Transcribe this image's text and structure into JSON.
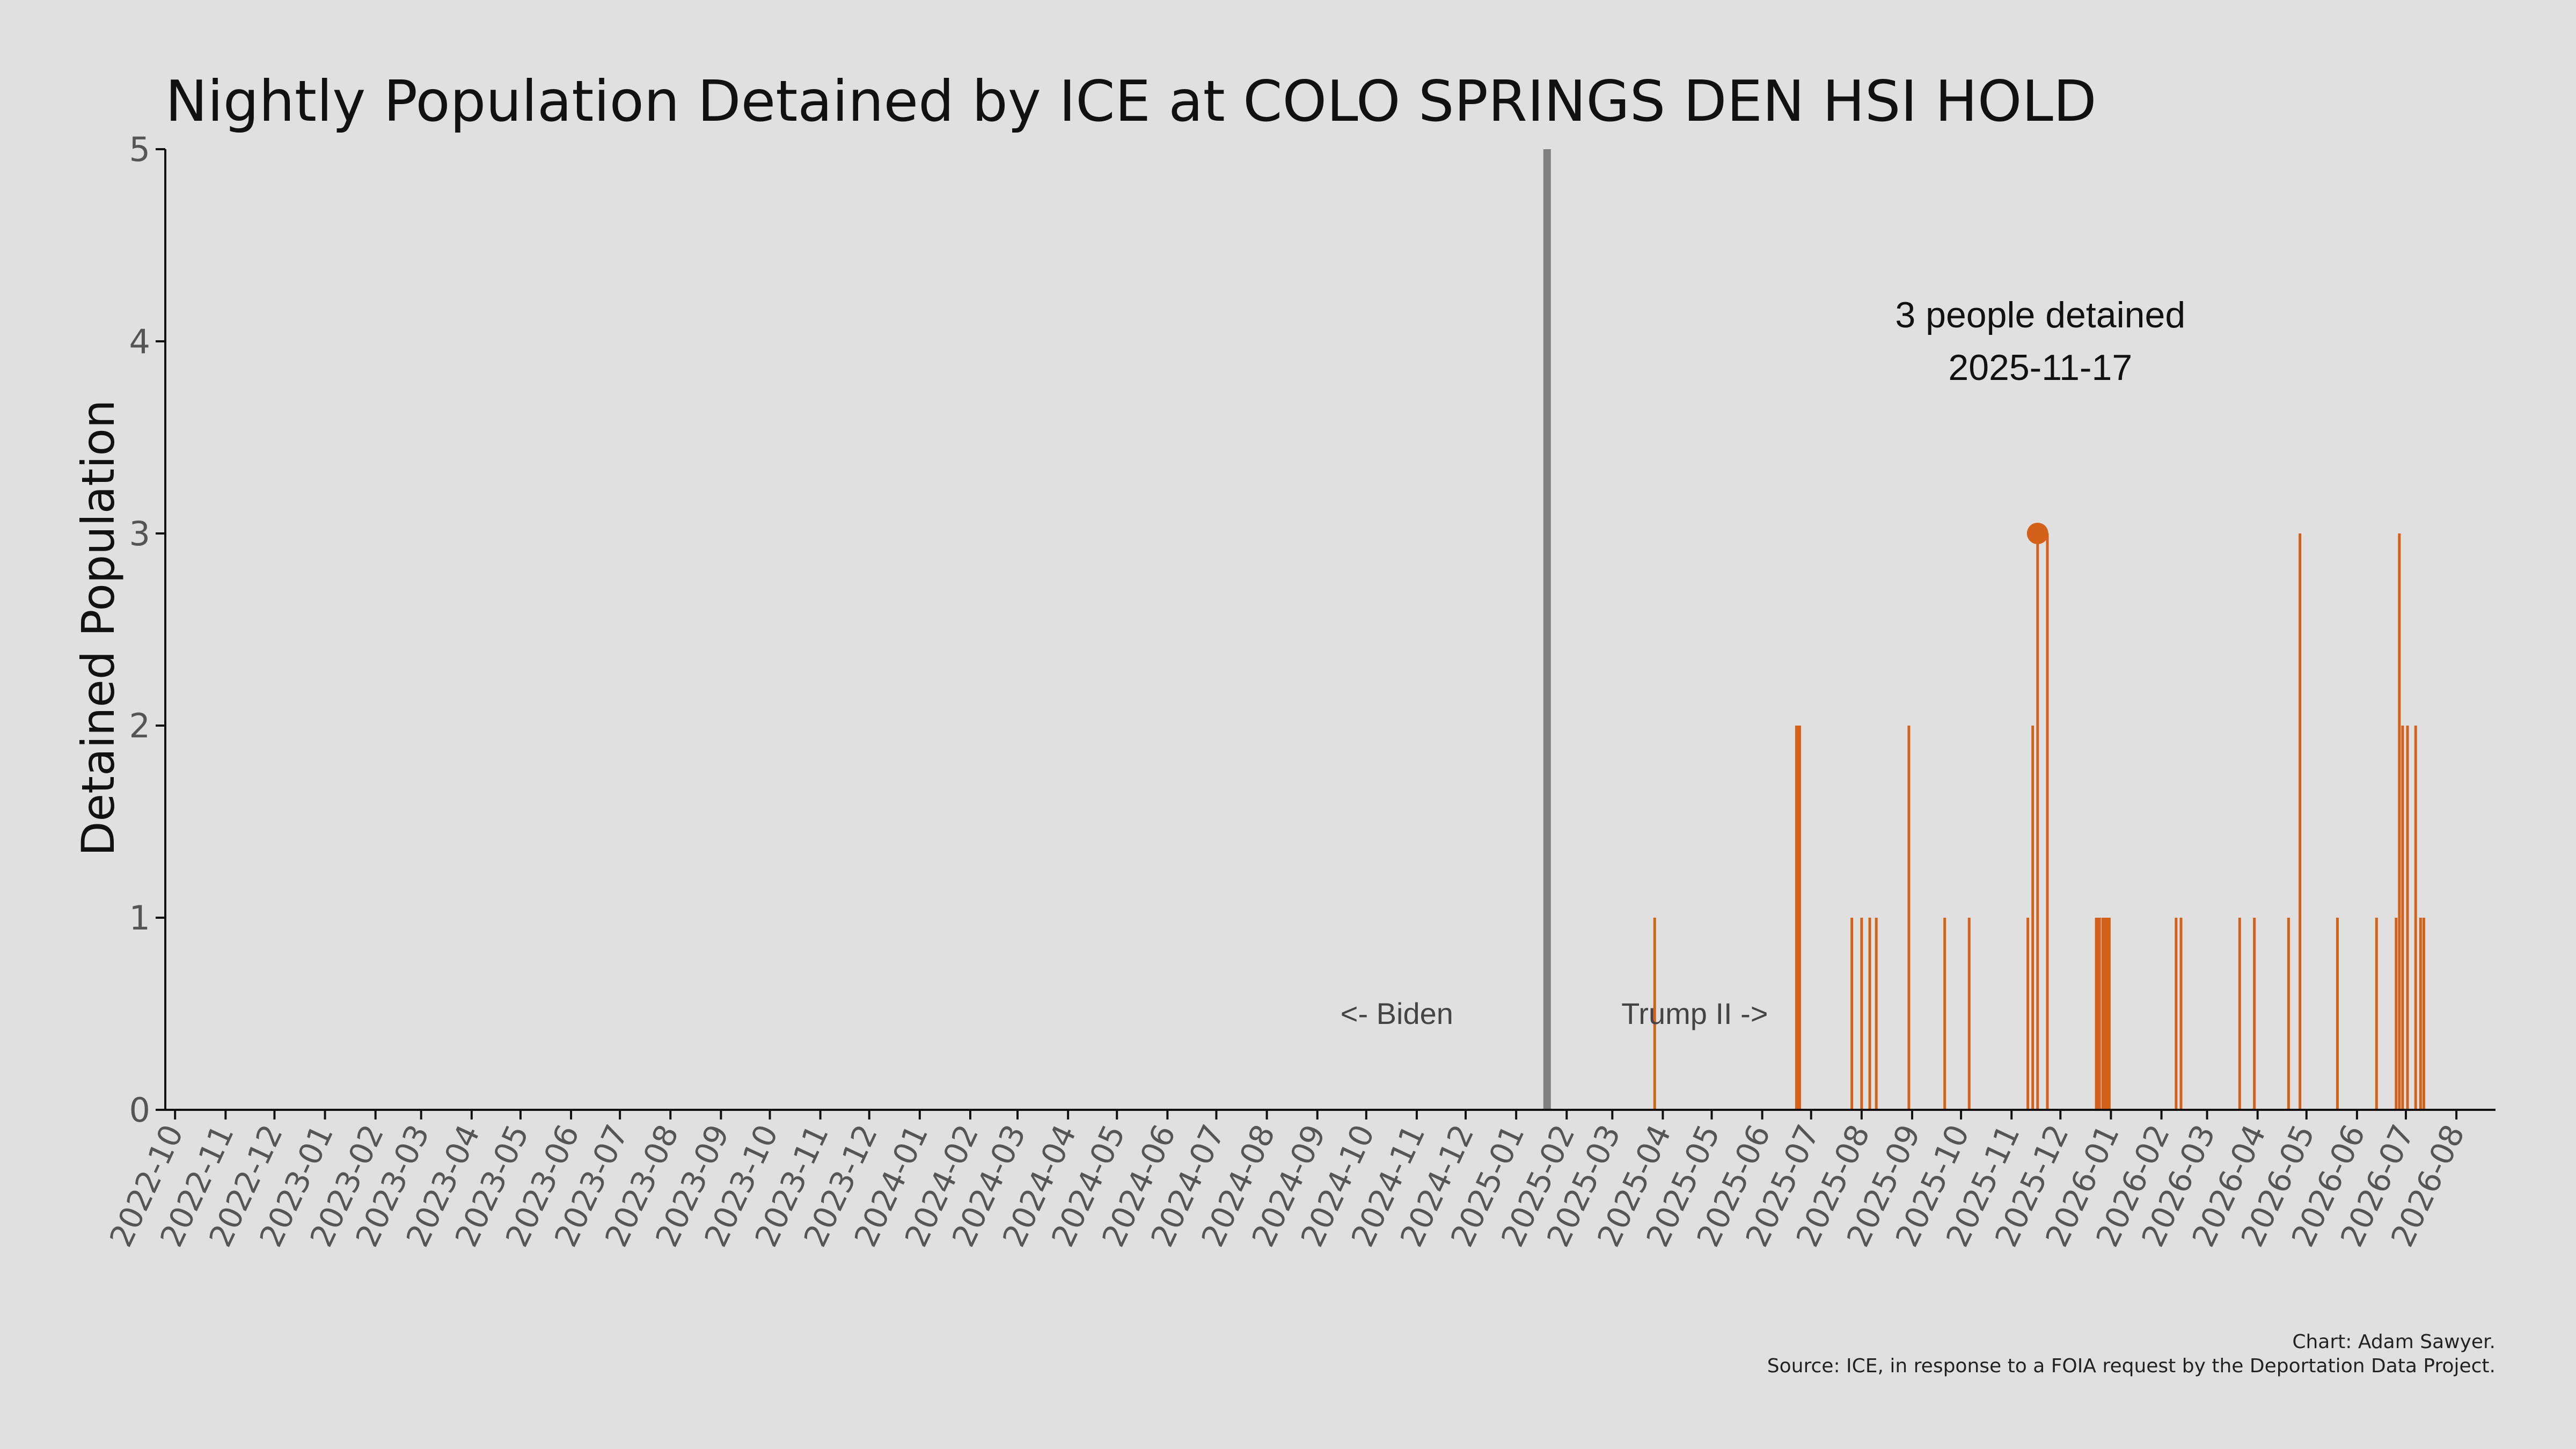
{
  "chart_data": {
    "type": "bar",
    "title": "Nightly Population Detained by ICE at COLO SPRINGS DEN HSI HOLD",
    "xlabel": "",
    "ylabel": "Detained Population",
    "ylim": [
      0,
      5
    ],
    "yticks": [
      "0",
      "1",
      "2",
      "3",
      "4",
      "5"
    ],
    "xlim": [
      "2022-09-25",
      "2026-08-25"
    ],
    "xticks": [
      "2022-10",
      "2022-11",
      "2022-12",
      "2023-01",
      "2023-02",
      "2023-03",
      "2023-04",
      "2023-05",
      "2023-06",
      "2023-07",
      "2023-08",
      "2023-09",
      "2023-10",
      "2023-11",
      "2023-12",
      "2024-01",
      "2024-02",
      "2024-03",
      "2024-04",
      "2024-05",
      "2024-06",
      "2024-07",
      "2024-08",
      "2024-09",
      "2024-10",
      "2024-11",
      "2024-12",
      "2025-01",
      "2025-02",
      "2025-03",
      "2025-04",
      "2025-05",
      "2025-06",
      "2025-07",
      "2025-08",
      "2025-09",
      "2025-10",
      "2025-11",
      "2025-12",
      "2026-01",
      "2026-02",
      "2026-03",
      "2026-04",
      "2026-05",
      "2026-06",
      "2026-07",
      "2026-08"
    ],
    "bar_color": "#d4611a",
    "divider": {
      "date": "2025-01-20",
      "color": "#808080"
    },
    "era_labels": {
      "left": "<- Biden",
      "right": "Trump II ->"
    },
    "highlight": {
      "date": "2025-11-17",
      "value": 3,
      "label_line1": "3 people detained",
      "label_line2": "2025-11-17"
    },
    "points": [
      {
        "x": "2025-03-27",
        "y": 1
      },
      {
        "x": "2025-06-22",
        "y": 2
      },
      {
        "x": "2025-06-23",
        "y": 2
      },
      {
        "x": "2025-06-24",
        "y": 2
      },
      {
        "x": "2025-07-26",
        "y": 1
      },
      {
        "x": "2025-08-01",
        "y": 1
      },
      {
        "x": "2025-08-06",
        "y": 1
      },
      {
        "x": "2025-08-10",
        "y": 1
      },
      {
        "x": "2025-08-30",
        "y": 2
      },
      {
        "x": "2025-09-21",
        "y": 1
      },
      {
        "x": "2025-10-06",
        "y": 1
      },
      {
        "x": "2025-11-11",
        "y": 1
      },
      {
        "x": "2025-11-14",
        "y": 2
      },
      {
        "x": "2025-11-17",
        "y": 3
      },
      {
        "x": "2025-11-23",
        "y": 3
      },
      {
        "x": "2025-12-23",
        "y": 1
      },
      {
        "x": "2025-12-24",
        "y": 1
      },
      {
        "x": "2025-12-25",
        "y": 1
      },
      {
        "x": "2025-12-27",
        "y": 1
      },
      {
        "x": "2025-12-28",
        "y": 1
      },
      {
        "x": "2025-12-29",
        "y": 1
      },
      {
        "x": "2025-12-30",
        "y": 1
      },
      {
        "x": "2025-12-31",
        "y": 1
      },
      {
        "x": "2026-02-10",
        "y": 1
      },
      {
        "x": "2026-02-13",
        "y": 1
      },
      {
        "x": "2026-03-21",
        "y": 1
      },
      {
        "x": "2026-03-30",
        "y": 1
      },
      {
        "x": "2026-04-20",
        "y": 1
      },
      {
        "x": "2026-04-27",
        "y": 3
      },
      {
        "x": "2026-05-20",
        "y": 1
      },
      {
        "x": "2026-06-13",
        "y": 1
      },
      {
        "x": "2026-06-25",
        "y": 1
      },
      {
        "x": "2026-06-27",
        "y": 3
      },
      {
        "x": "2026-06-29",
        "y": 2
      },
      {
        "x": "2026-07-02",
        "y": 2
      },
      {
        "x": "2026-07-07",
        "y": 2
      },
      {
        "x": "2026-07-10",
        "y": 1
      },
      {
        "x": "2026-07-12",
        "y": 1
      }
    ]
  },
  "credits": {
    "line1": "Chart: Adam Sawyer.",
    "line2": "Source: ICE, in response to a FOIA request by the Deportation Data Project."
  }
}
